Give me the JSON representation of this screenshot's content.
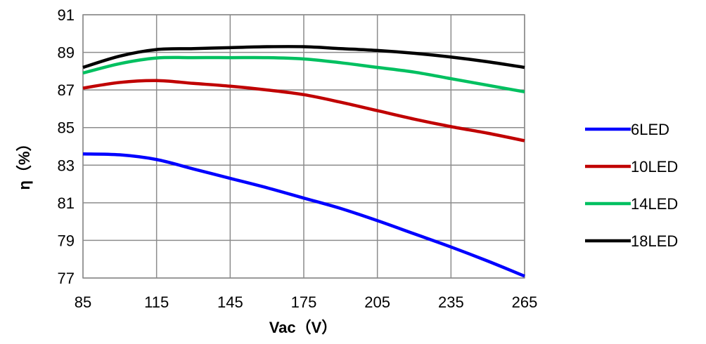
{
  "chart_data": {
    "type": "line",
    "title": "",
    "xlabel": "Vac（V）",
    "ylabel": "η（%）",
    "xlim": [
      85,
      265
    ],
    "ylim": [
      77,
      91
    ],
    "x_ticks": [
      85,
      115,
      145,
      175,
      205,
      235,
      265
    ],
    "y_ticks": [
      77,
      79,
      81,
      83,
      85,
      87,
      89,
      91
    ],
    "grid": true,
    "legend_position": "right",
    "x": [
      85,
      100,
      115,
      130,
      145,
      160,
      175,
      190,
      205,
      220,
      235,
      250,
      265
    ],
    "series": [
      {
        "name": "6LED",
        "color": "#0000FF",
        "values": [
          83.6,
          83.55,
          83.3,
          82.8,
          82.3,
          81.8,
          81.25,
          80.7,
          80.05,
          79.35,
          78.65,
          77.9,
          77.1
        ]
      },
      {
        "name": "10LED",
        "color": "#C00000",
        "values": [
          87.1,
          87.4,
          87.5,
          87.35,
          87.2,
          87.0,
          86.75,
          86.35,
          85.9,
          85.45,
          85.05,
          84.7,
          84.3
        ]
      },
      {
        "name": "14LED",
        "color": "#00C060",
        "values": [
          87.9,
          88.4,
          88.7,
          88.72,
          88.72,
          88.72,
          88.65,
          88.45,
          88.2,
          87.95,
          87.6,
          87.25,
          86.9
        ]
      },
      {
        "name": "18LED",
        "color": "#000000",
        "values": [
          88.2,
          88.8,
          89.15,
          89.2,
          89.25,
          89.3,
          89.3,
          89.2,
          89.1,
          88.95,
          88.75,
          88.5,
          88.2
        ]
      }
    ]
  }
}
